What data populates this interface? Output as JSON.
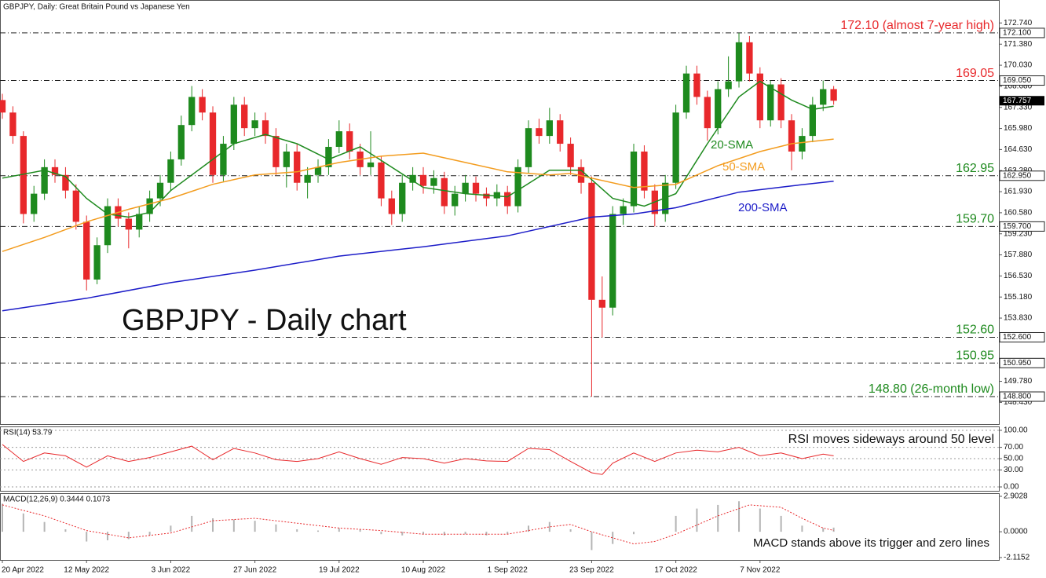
{
  "chart_data": [
    {
      "type": "candlestick",
      "title": "GBPJPY, Daily:  Great Britain Pound vs Japanese Yen",
      "annotation": "GBPJPY - Daily chart",
      "up_color": "#1e8a1e",
      "down_color": "#e8282b",
      "x": [
        0,
        2,
        4,
        6,
        8,
        10,
        12,
        14,
        16,
        18,
        20,
        22,
        24,
        26,
        28,
        30,
        32,
        34,
        36,
        38,
        40,
        42,
        44,
        46,
        48,
        50,
        52,
        54,
        56,
        58,
        60,
        62,
        64,
        66,
        68,
        70,
        72,
        74,
        76,
        78,
        80,
        82,
        84,
        86,
        88,
        90,
        92,
        94,
        96,
        98,
        100,
        102,
        104,
        106,
        108,
        110,
        112,
        114,
        116,
        118,
        120,
        122,
        124,
        126,
        128,
        130,
        132,
        134,
        136,
        138,
        140,
        142,
        144,
        146,
        148,
        150,
        152,
        154,
        156,
        158
      ],
      "open": [
        167.8,
        167.0,
        165.5,
        160.5,
        161.8,
        163.5,
        163.0,
        162.0,
        160.0,
        156.3,
        158.5,
        161.0,
        160.2,
        159.5,
        160.5,
        161.5,
        162.5,
        164.0,
        166.2,
        168.0,
        167.0,
        163.0,
        165.0,
        167.5,
        166.0,
        166.5,
        165.5,
        163.5,
        164.5,
        162.5,
        163.0,
        163.5,
        164.8,
        165.8,
        164.5,
        163.5,
        163.8,
        161.5,
        160.5,
        162.5,
        163.0,
        162.3,
        162.8,
        161.0,
        161.8,
        162.5,
        161.8,
        161.5,
        161.9,
        161.0,
        163.5,
        166.0,
        165.5,
        166.5,
        165.0,
        163.5,
        162.5,
        155.0,
        154.5,
        160.5,
        161.0,
        164.5,
        162.0,
        160.5,
        162.5,
        167.0,
        169.5,
        168.0,
        166.0,
        168.5,
        169.0,
        171.5,
        169.5,
        166.5,
        168.8,
        166.5,
        164.5,
        165.5,
        167.5,
        168.5
      ],
      "high": [
        168.2,
        167.4,
        165.8,
        162.3,
        164.0,
        164.0,
        163.5,
        162.4,
        160.4,
        159.0,
        161.5,
        161.5,
        160.6,
        161.0,
        162.0,
        163.0,
        164.5,
        166.8,
        168.7,
        168.5,
        167.4,
        165.5,
        168.0,
        168.0,
        167.0,
        167.0,
        166.0,
        165.0,
        165.0,
        163.5,
        164.0,
        165.3,
        166.5,
        166.3,
        165.0,
        165.8,
        164.2,
        162.0,
        163.0,
        163.5,
        163.5,
        163.3,
        163.2,
        162.3,
        163.0,
        162.9,
        162.2,
        162.4,
        162.3,
        164.0,
        166.5,
        166.6,
        167.3,
        166.9,
        165.4,
        164.0,
        162.9,
        156.5,
        161.0,
        161.5,
        165.0,
        164.9,
        162.4,
        163.0,
        167.5,
        170.0,
        170.0,
        168.4,
        169.0,
        170.6,
        172.1,
        171.9,
        169.9,
        169.05,
        169.2,
        166.9,
        166.0,
        168.0,
        169.05,
        168.7
      ],
      "low": [
        166.6,
        165.0,
        159.9,
        160.0,
        161.4,
        162.5,
        161.5,
        159.5,
        155.6,
        156.0,
        158.0,
        159.7,
        158.3,
        159.0,
        160.0,
        161.0,
        162.0,
        163.6,
        165.8,
        166.5,
        162.5,
        162.6,
        164.6,
        165.5,
        165.5,
        165.0,
        163.0,
        162.2,
        162.0,
        161.5,
        162.5,
        163.0,
        164.4,
        164.0,
        163.0,
        163.0,
        161.0,
        159.8,
        160.0,
        162.0,
        161.8,
        161.8,
        160.5,
        160.4,
        161.3,
        161.3,
        161.0,
        161.0,
        160.5,
        160.6,
        163.1,
        165.0,
        165.0,
        164.5,
        163.0,
        161.8,
        148.8,
        152.6,
        154.0,
        159.8,
        160.6,
        161.5,
        159.7,
        160.0,
        162.1,
        166.6,
        167.5,
        165.2,
        165.6,
        168.0,
        168.6,
        169.0,
        166.0,
        166.1,
        166.0,
        163.3,
        164.0,
        165.1,
        167.1,
        167.5
      ],
      "close": [
        167.0,
        165.5,
        160.5,
        161.8,
        163.5,
        163.0,
        162.0,
        160.0,
        156.3,
        158.5,
        161.0,
        160.2,
        159.5,
        160.5,
        161.5,
        162.5,
        164.0,
        166.2,
        168.0,
        167.0,
        163.0,
        165.0,
        167.5,
        166.0,
        166.5,
        165.5,
        163.5,
        164.5,
        162.5,
        163.0,
        163.5,
        164.8,
        165.8,
        164.5,
        163.5,
        163.8,
        161.5,
        160.5,
        162.5,
        163.0,
        162.3,
        162.8,
        161.0,
        161.8,
        162.5,
        161.8,
        161.5,
        161.9,
        161.0,
        163.5,
        166.0,
        165.5,
        166.5,
        165.0,
        163.5,
        162.5,
        155.0,
        154.5,
        160.5,
        161.0,
        164.5,
        162.0,
        160.5,
        162.5,
        167.0,
        169.5,
        168.0,
        166.0,
        168.5,
        169.0,
        171.5,
        169.5,
        166.5,
        168.8,
        166.5,
        164.5,
        165.5,
        167.5,
        168.5,
        167.757
      ],
      "overlays": [
        {
          "name": "20-SMA",
          "color": "#1e8a1e",
          "x": [
            0,
            8,
            12,
            16,
            20,
            24,
            28,
            32,
            38,
            44,
            50,
            56,
            62,
            68,
            74,
            80,
            88,
            96,
            104,
            110,
            116,
            122,
            128,
            134,
            140,
            144,
            150,
            154,
            158
          ],
          "values": [
            162.8,
            163.3,
            162.9,
            161.5,
            160.5,
            160.3,
            160.6,
            162.0,
            163.5,
            165.0,
            165.6,
            165.0,
            164.0,
            164.8,
            163.5,
            162.2,
            161.8,
            161.6,
            163.3,
            163.3,
            161.5,
            161.0,
            161.8,
            165.0,
            168.0,
            169.0,
            167.8,
            167.2,
            167.4
          ]
        },
        {
          "name": "50-SMA",
          "color": "#f39c1e",
          "x": [
            0,
            8,
            16,
            24,
            32,
            40,
            48,
            56,
            64,
            72,
            80,
            88,
            96,
            104,
            108,
            112,
            120,
            128,
            136,
            144,
            150,
            158
          ],
          "values": [
            158.1,
            159.0,
            160.0,
            160.8,
            161.5,
            162.4,
            163.0,
            163.2,
            163.8,
            164.2,
            164.4,
            163.8,
            163.2,
            163.0,
            163.1,
            162.8,
            162.2,
            162.4,
            163.6,
            164.5,
            165.0,
            165.3
          ]
        },
        {
          "name": "200-SMA",
          "color": "#1c1cc8",
          "x": [
            0,
            16,
            32,
            48,
            64,
            80,
            96,
            112,
            120,
            128,
            140,
            150,
            158
          ],
          "values": [
            154.3,
            155.1,
            156.1,
            156.9,
            157.8,
            158.4,
            159.1,
            160.3,
            160.5,
            160.9,
            161.9,
            162.3,
            162.6
          ]
        }
      ],
      "levels": [
        {
          "value": 172.1,
          "label": "172.10 (almost 7-year high)",
          "axis_label": "172.100",
          "color": "#e8282b"
        },
        {
          "value": 169.05,
          "label": "169.05",
          "axis_label": "169.050",
          "color": "#e8282b"
        },
        {
          "value": 162.95,
          "label": "162.95",
          "axis_label": "162.950",
          "color": "#1e8a1e"
        },
        {
          "value": 159.7,
          "label": "159.70",
          "axis_label": "159.700",
          "color": "#1e8a1e"
        },
        {
          "value": 152.6,
          "label": "152.60",
          "axis_label": "152.600",
          "color": "#1e8a1e"
        },
        {
          "value": 150.95,
          "label": "150.95",
          "axis_label": "150.950",
          "color": "#1e8a1e"
        },
        {
          "value": 148.8,
          "label": "148.80 (26-month low)",
          "axis_label": "148.800",
          "color": "#1e8a1e"
        }
      ],
      "current_price": 167.757,
      "ylim": [
        147.04,
        174.21
      ],
      "yticks": [
        {
          "value": 172.74,
          "label": "172.740"
        },
        {
          "value": 171.38,
          "label": "171.380"
        },
        {
          "value": 170.03,
          "label": "170.030"
        },
        {
          "value": 168.68,
          "label": "168.680"
        },
        {
          "value": 167.33,
          "label": "167.330"
        },
        {
          "value": 165.98,
          "label": "165.980"
        },
        {
          "value": 164.63,
          "label": "164.630"
        },
        {
          "value": 163.28,
          "label": "163.280"
        },
        {
          "value": 161.93,
          "label": "161.930"
        },
        {
          "value": 160.58,
          "label": "160.580"
        },
        {
          "value": 159.23,
          "label": "159.230"
        },
        {
          "value": 157.88,
          "label": "157.880"
        },
        {
          "value": 156.53,
          "label": "156.530"
        },
        {
          "value": 155.18,
          "label": "155.180"
        },
        {
          "value": 153.83,
          "label": "153.830"
        },
        {
          "value": 149.78,
          "label": "149.780"
        },
        {
          "value": 148.43,
          "label": "148.430"
        }
      ],
      "xlim": [
        -0.45,
        189.4
      ],
      "xticks": [
        {
          "value": 0,
          "label": "20 Apr 2022"
        },
        {
          "value": 16,
          "label": "12 May 2022"
        },
        {
          "value": 32,
          "label": "3 Jun 2022"
        },
        {
          "value": 48,
          "label": "27 Jun 2022"
        },
        {
          "value": 64,
          "label": "19 Jul 2022"
        },
        {
          "value": 80,
          "label": "10 Aug 2022"
        },
        {
          "value": 96,
          "label": "1 Sep 2022"
        },
        {
          "value": 112,
          "label": "23 Sep 2022"
        },
        {
          "value": 128,
          "label": "17 Oct 2022"
        },
        {
          "value": 144,
          "label": "7 Nov 2022"
        }
      ]
    },
    {
      "type": "line",
      "title": "RSI(14) 53.79",
      "annotation": "RSI moves sideways around 50 level",
      "color": "#e8282b",
      "x": [
        0,
        4,
        8,
        12,
        16,
        20,
        24,
        28,
        32,
        36,
        40,
        44,
        48,
        52,
        56,
        60,
        64,
        68,
        72,
        76,
        80,
        84,
        88,
        92,
        96,
        100,
        104,
        108,
        112,
        114,
        116,
        120,
        124,
        128,
        132,
        136,
        140,
        144,
        148,
        152,
        156,
        158
      ],
      "values": [
        75,
        45,
        60,
        55,
        35,
        55,
        45,
        52,
        62,
        72,
        48,
        68,
        60,
        48,
        45,
        50,
        62,
        50,
        40,
        52,
        50,
        42,
        50,
        46,
        45,
        68,
        66,
        45,
        25,
        22,
        42,
        60,
        45,
        60,
        65,
        62,
        70,
        55,
        60,
        50,
        58,
        55
      ],
      "ylim": [
        -6.9,
        106.9
      ],
      "yticks": [
        {
          "value": 100,
          "label": "100.00"
        },
        {
          "value": 70,
          "label": "70.00"
        },
        {
          "value": 50,
          "label": "50.00"
        },
        {
          "value": 30,
          "label": "30.00"
        },
        {
          "value": 0,
          "label": "0.00"
        }
      ],
      "xlim": [
        -0.45,
        189.4
      ]
    },
    {
      "type": "macd",
      "title": "MACD(12,26,9) 0.3444 0.1073",
      "annotation": "MACD stands above its trigger and zero lines",
      "histogram": {
        "color": "#b4b4b4",
        "x": [
          0,
          4,
          8,
          12,
          16,
          20,
          24,
          28,
          32,
          36,
          40,
          44,
          48,
          52,
          56,
          60,
          64,
          68,
          72,
          76,
          80,
          84,
          88,
          92,
          96,
          100,
          104,
          108,
          112,
          116,
          120,
          124,
          128,
          132,
          136,
          140,
          144,
          148,
          152,
          156,
          158
        ],
        "values": [
          2.3,
          1.5,
          0.8,
          0.2,
          -0.8,
          -0.7,
          -0.6,
          -0.3,
          0.5,
          1.3,
          1.1,
          1.0,
          0.9,
          0.6,
          0.2,
          0.1,
          0.3,
          0.2,
          -0.2,
          -0.3,
          -0.2,
          -0.3,
          -0.2,
          -0.3,
          -0.2,
          0.5,
          0.8,
          0.2,
          -1.5,
          -1.0,
          -0.2,
          0.0,
          1.3,
          1.9,
          2.2,
          2.5,
          1.9,
          1.3,
          0.5,
          0.3,
          0.34
        ]
      },
      "signal": {
        "color": "#e8282b",
        "x": [
          0,
          8,
          16,
          24,
          32,
          40,
          48,
          56,
          64,
          72,
          80,
          88,
          96,
          104,
          108,
          112,
          120,
          124,
          128,
          136,
          142,
          148,
          152,
          156,
          158
        ],
        "values": [
          2.2,
          1.3,
          0.1,
          -0.5,
          -0.1,
          0.9,
          1.1,
          0.7,
          0.3,
          0.1,
          -0.2,
          -0.2,
          -0.2,
          0.4,
          0.6,
          0.0,
          -1.0,
          -0.8,
          -0.2,
          1.3,
          2.2,
          2.0,
          1.1,
          0.3,
          0.11
        ]
      },
      "ylim": [
        -2.31,
        3.16
      ],
      "yticks": [
        2.9028,
        {
          "value": 0,
          "label": "0.0000"
        },
        -2.1152
      ],
      "xlim": [
        -0.45,
        189.4
      ]
    }
  ]
}
